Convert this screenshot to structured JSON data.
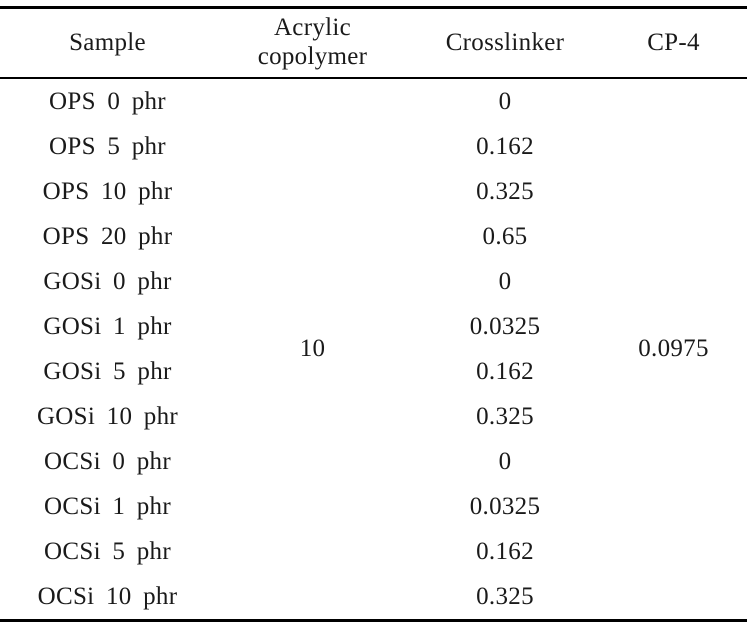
{
  "page": {
    "background": "#ffffff",
    "text_color": "#1a1a1a",
    "rule_color": "#000000"
  },
  "table": {
    "columns": [
      {
        "id": "sample",
        "label": "Sample"
      },
      {
        "id": "acrylic_copolymer",
        "label": "Acrylic copolymer",
        "lines": [
          "Acrylic",
          "copolymer"
        ]
      },
      {
        "id": "crosslinker",
        "label": "Crosslinker"
      },
      {
        "id": "cp4",
        "label": "CP-4"
      }
    ],
    "rows": [
      {
        "sample": "OPS 0 phr",
        "crosslinker": "0"
      },
      {
        "sample": "OPS 5 phr",
        "crosslinker": "0.162"
      },
      {
        "sample": "OPS 10 phr",
        "crosslinker": "0.325"
      },
      {
        "sample": "OPS 20 phr",
        "crosslinker": "0.65"
      },
      {
        "sample": "GOSi 0 phr",
        "crosslinker": "0"
      },
      {
        "sample": "GOSi 1 phr",
        "crosslinker": "0.0325"
      },
      {
        "sample": "GOSi 5 phr",
        "crosslinker": "0.162"
      },
      {
        "sample": "GOSi 10 phr",
        "crosslinker": "0.325"
      },
      {
        "sample": "OCSi 0 phr",
        "crosslinker": "0"
      },
      {
        "sample": "OCSi 1 phr",
        "crosslinker": "0.0325"
      },
      {
        "sample": "OCSi 5 phr",
        "crosslinker": "0.162"
      },
      {
        "sample": "OCSi 10 phr",
        "crosslinker": "0.325"
      }
    ],
    "merged": {
      "acrylic_copolymer": "10",
      "cp4": "0.0975"
    }
  },
  "chart_data": {
    "type": "table",
    "columns": [
      "Sample",
      "Acrylic copolymer",
      "Crosslinker",
      "CP-4"
    ],
    "rows": [
      [
        "OPS 0 phr",
        "10",
        "0",
        "0.0975"
      ],
      [
        "OPS 5 phr",
        "10",
        "0.162",
        "0.0975"
      ],
      [
        "OPS 10 phr",
        "10",
        "0.325",
        "0.0975"
      ],
      [
        "OPS 20 phr",
        "10",
        "0.65",
        "0.0975"
      ],
      [
        "GOSi 0 phr",
        "10",
        "0",
        "0.0975"
      ],
      [
        "GOSi 1 phr",
        "10",
        "0.0325",
        "0.0975"
      ],
      [
        "GOSi 5 phr",
        "10",
        "0.162",
        "0.0975"
      ],
      [
        "GOSi 10 phr",
        "10",
        "0.325",
        "0.0975"
      ],
      [
        "OCSi 0 phr",
        "10",
        "0",
        "0.0975"
      ],
      [
        "OCSi 1 phr",
        "10",
        "0.0325",
        "0.0975"
      ],
      [
        "OCSi 5 phr",
        "10",
        "0.162",
        "0.0975"
      ],
      [
        "OCSi 10 phr",
        "10",
        "0.325",
        "0.0975"
      ]
    ],
    "layout_hint": "Acrylic copolymer value 10 and CP-4 value 0.0975 are single merged cells spanning all 12 body rows"
  }
}
